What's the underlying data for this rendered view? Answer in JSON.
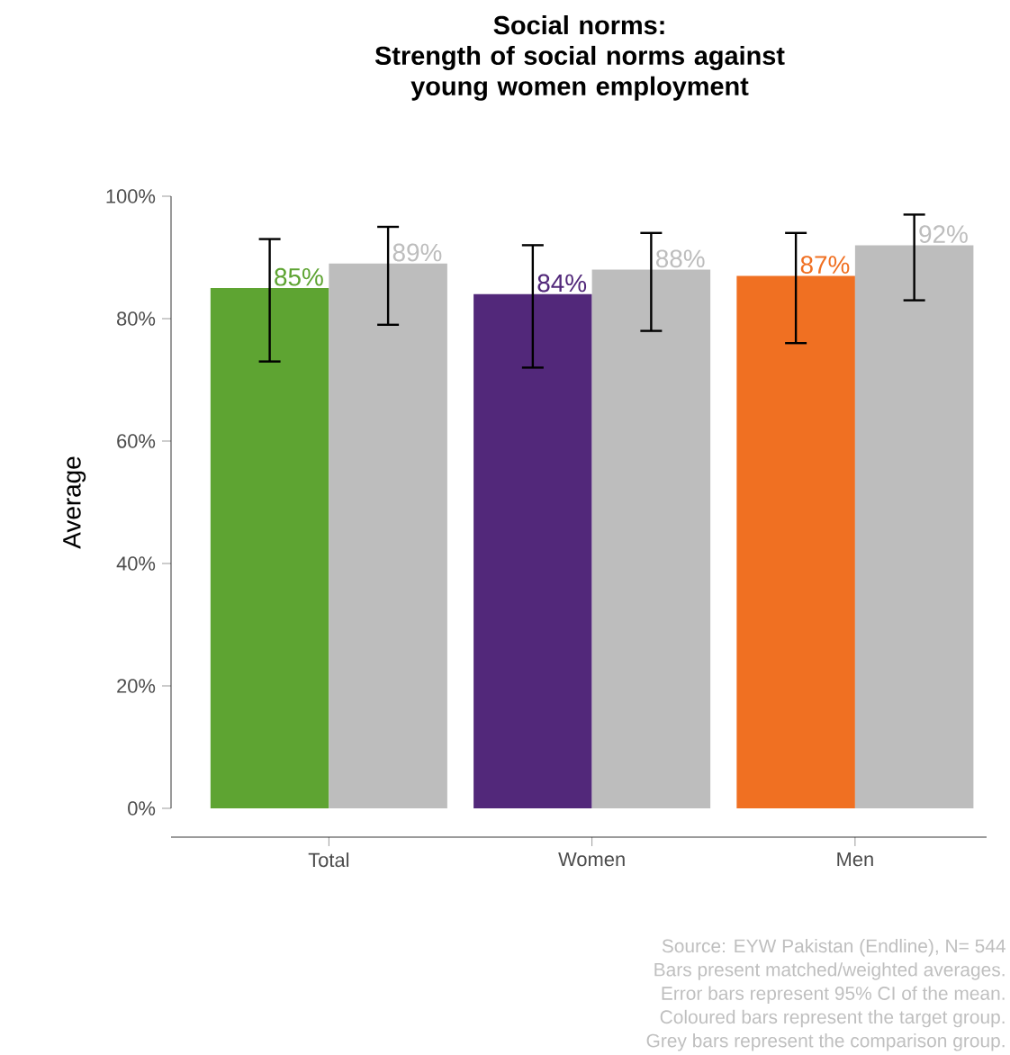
{
  "chart_data": {
    "type": "bar",
    "title": "Social norms:",
    "subtitle": "Strength of social norms against young women employment",
    "ylabel": "Average",
    "categories": [
      "Total",
      "Women",
      "Men"
    ],
    "series": [
      {
        "colors": [
          "#5ea432",
          "#52287a",
          "#f07022"
        ],
        "values": [
          85,
          84,
          87
        ],
        "value_labels": [
          "85%",
          "84%",
          "87%"
        ],
        "errors": [
          [
            73,
            93
          ],
          [
            72,
            92
          ],
          [
            76,
            94
          ]
        ]
      },
      {
        "color": "#bdbdbd",
        "values": [
          89,
          88,
          92
        ],
        "value_labels": [
          "89%",
          "88%",
          "92%"
        ],
        "errors": [
          [
            79,
            95
          ],
          [
            78,
            94
          ],
          [
            83,
            97
          ]
        ]
      }
    ],
    "ylim": [
      0,
      100
    ],
    "yticks": [
      {
        "value": 0,
        "label": "0%"
      },
      {
        "value": 20,
        "label": "20%"
      },
      {
        "value": 40,
        "label": "40%"
      },
      {
        "value": 60,
        "label": "60%"
      },
      {
        "value": 80,
        "label": "80%"
      },
      {
        "value": 100,
        "label": "100%"
      }
    ],
    "annotations": [
      "Source: EYW Pakistan (Endline), N= 544",
      "Bars present matched/weighted averages.",
      "Error bars represent 95% CI of the mean.",
      "Coloured bars represent the target group.",
      "Grey bars represent the comparison group."
    ]
  }
}
